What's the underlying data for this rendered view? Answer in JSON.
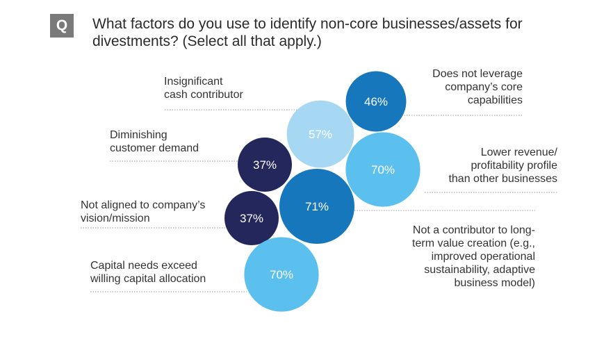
{
  "header": {
    "badge": "Q",
    "title": "What factors do you use to identify non-core businesses/assets for divestments? (Select all that apply.)"
  },
  "chart_data": {
    "type": "bubble",
    "title": "What factors do you use to identify non-core businesses/assets for divestments? (Select all that apply.)",
    "unit": "%",
    "items": [
      {
        "name": "Insignificant cash contributor",
        "label": "Insignificant\ncash contributor",
        "value": 57,
        "display": "57%",
        "color": "#a7d8f3",
        "text_color": "#ffffff"
      },
      {
        "name": "Does not leverage company's core capabilities",
        "label": "Does not leverage\ncompany’s core\ncapabilities",
        "value": 46,
        "display": "46%",
        "color": "#1777bd",
        "text_color": "#ffffff"
      },
      {
        "name": "Diminishing customer demand",
        "label": "Diminishing\ncustomer demand",
        "value": 37,
        "display": "37%",
        "color": "#23275c",
        "text_color": "#ffffff"
      },
      {
        "name": "Lower revenue/profitability profile than other businesses",
        "label": "Lower revenue/\nprofitability profile\nthan other businesses",
        "value": 70,
        "display": "70%",
        "color": "#5cc0ee",
        "text_color": "#ffffff"
      },
      {
        "name": "Not aligned to company's vision/mission",
        "label": "Not aligned to company’s\nvision/mission",
        "value": 37,
        "display": "37%",
        "color": "#23275c",
        "text_color": "#ffffff"
      },
      {
        "name": "Not a contributor to long-term value creation",
        "label": "Not a contributor to long-\nterm value creation (e.g.,\nimproved operational\nsustainability, adaptive\nbusiness model)",
        "value": 71,
        "display": "71%",
        "color": "#1777bd",
        "text_color": "#ffffff"
      },
      {
        "name": "Capital needs exceed willing capital allocation",
        "label": "Capital needs exceed\nwilling capital allocation",
        "value": 70,
        "display": "70%",
        "color": "#5cc0ee",
        "text_color": "#ffffff"
      }
    ]
  }
}
